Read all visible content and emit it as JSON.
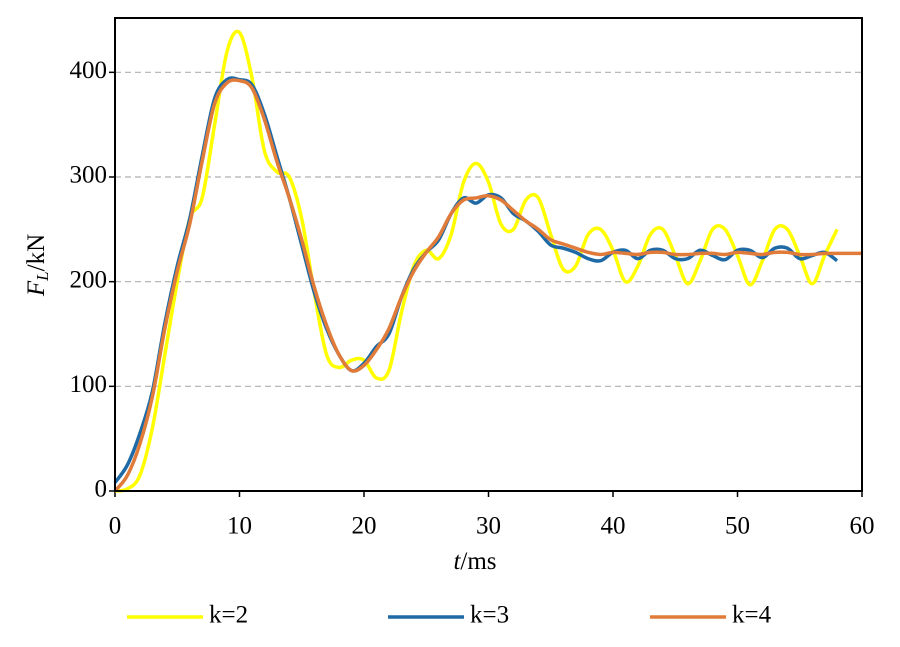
{
  "chart_data": {
    "type": "line",
    "xlabel": [
      "t",
      "/ms"
    ],
    "ylabel": [
      "F",
      "L",
      "/kN"
    ],
    "x": [
      0,
      1,
      2,
      3,
      4,
      5,
      6,
      7,
      8,
      9,
      10,
      11,
      12,
      13,
      14,
      15,
      16,
      17,
      18,
      19,
      20,
      21,
      22,
      23,
      24,
      25,
      26,
      27,
      28,
      29,
      30,
      31,
      32,
      33,
      34,
      35,
      36,
      37,
      38,
      39,
      40,
      41,
      42,
      43,
      44,
      45,
      46,
      47,
      48,
      49,
      50,
      51,
      52,
      53,
      54,
      55,
      56,
      57,
      58,
      59,
      60
    ],
    "series": [
      {
        "name": "k=2",
        "color": "#ffff00",
        "values": [
          0,
          2,
          15,
          60,
          130,
          200,
          260,
          280,
          350,
          420,
          438,
          395,
          325,
          305,
          300,
          260,
          190,
          130,
          118,
          125,
          125,
          108,
          115,
          170,
          215,
          230,
          222,
          245,
          295,
          313,
          295,
          255,
          250,
          278,
          280,
          245,
          212,
          215,
          245,
          250,
          230,
          200,
          215,
          245,
          250,
          225,
          198,
          220,
          250,
          250,
          225,
          197,
          220,
          250,
          250,
          225,
          198,
          225,
          250,
          null,
          null
        ]
      },
      {
        "name": "k=3",
        "color": "#1f6aa5",
        "values": [
          8,
          25,
          55,
          95,
          160,
          215,
          260,
          320,
          375,
          393,
          393,
          388,
          360,
          320,
          280,
          235,
          190,
          155,
          130,
          115,
          122,
          138,
          150,
          185,
          212,
          228,
          240,
          265,
          280,
          275,
          283,
          280,
          265,
          258,
          248,
          235,
          232,
          228,
          222,
          220,
          228,
          230,
          222,
          230,
          230,
          222,
          222,
          230,
          225,
          221,
          230,
          230,
          223,
          232,
          232,
          222,
          225,
          228,
          220,
          null,
          null
        ]
      },
      {
        "name": "k=4",
        "color": "#e07b39",
        "values": [
          0,
          15,
          45,
          90,
          155,
          210,
          255,
          315,
          370,
          390,
          392,
          385,
          355,
          315,
          280,
          240,
          195,
          158,
          130,
          115,
          120,
          135,
          155,
          185,
          210,
          228,
          243,
          265,
          278,
          280,
          282,
          278,
          268,
          258,
          250,
          240,
          236,
          232,
          228,
          226,
          228,
          227,
          226,
          228,
          228,
          226,
          226,
          227,
          227,
          226,
          228,
          227,
          226,
          228,
          228,
          226,
          226,
          227,
          227,
          227,
          227
        ]
      }
    ],
    "xlim": [
      0,
      60
    ],
    "xticks": [
      0,
      10,
      20,
      30,
      40,
      50,
      60
    ],
    "ylim": [
      0,
      450
    ],
    "yticks": [
      0,
      100,
      200,
      300,
      400
    ],
    "grid": true,
    "legend": "bottom"
  }
}
